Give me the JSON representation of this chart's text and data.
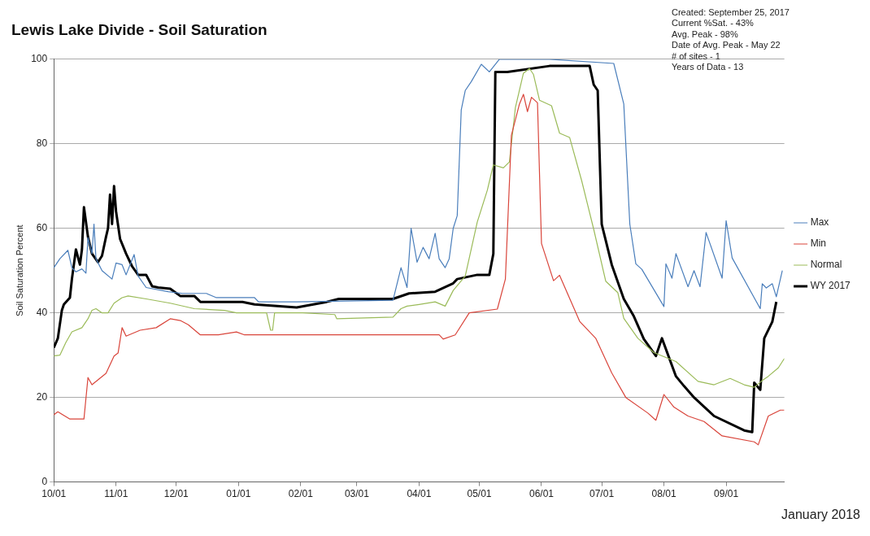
{
  "chart_data": {
    "type": "line",
    "title": "Lewis Lake Divide - Soil Saturation",
    "ylabel": "Soil Saturation Percent",
    "annotations": [
      "Created: September 25, 2017",
      "Current %Sat. - 43%",
      "Avg. Peak - 98%",
      "Date of Avg. Peak - May 22",
      "# of sites - 1",
      "Years of Data - 13",
      "January 2018"
    ],
    "xlim": [
      "2016-10-01",
      "2017-09-30"
    ],
    "xticks": [
      {
        "value": "2016-10-01",
        "label": "10/01"
      },
      {
        "value": "2016-11-01",
        "label": "11/01"
      },
      {
        "value": "2016-12-01",
        "label": "12/01"
      },
      {
        "value": "2017-01-01",
        "label": "01/01"
      },
      {
        "value": "2017-02-01",
        "label": "02/01"
      },
      {
        "value": "2017-03-01",
        "label": "03/01"
      },
      {
        "value": "2017-04-01",
        "label": "04/01"
      },
      {
        "value": "2017-05-01",
        "label": "05/01"
      },
      {
        "value": "2017-06-01",
        "label": "06/01"
      },
      {
        "value": "2017-07-01",
        "label": "07/01"
      },
      {
        "value": "2017-08-01",
        "label": "08/01"
      },
      {
        "value": "2017-09-01",
        "label": "09/01"
      }
    ],
    "ylim": [
      0,
      100
    ],
    "yticks": [
      0,
      20,
      40,
      60,
      80,
      100
    ],
    "grid": "y",
    "legend": "right",
    "marker": "none",
    "line_style": "solid",
    "series": [
      {
        "name": "Max",
        "color": "#4a7ebb",
        "x": [
          "2016-10-01",
          "2016-10-04",
          "2016-10-08",
          "2016-10-10",
          "2016-10-12",
          "2016-10-15",
          "2016-10-17",
          "2016-10-18",
          "2016-10-20",
          "2016-10-21",
          "2016-10-22",
          "2016-10-25",
          "2016-10-30",
          "2016-11-01",
          "2016-11-04",
          "2016-11-06",
          "2016-11-10",
          "2016-11-12",
          "2016-11-16",
          "2016-11-27",
          "2016-12-04",
          "2016-12-16",
          "2016-12-21",
          "2017-01-09",
          "2017-01-11",
          "2017-01-30",
          "2017-03-19",
          "2017-03-23",
          "2017-03-26",
          "2017-03-28",
          "2017-03-31",
          "2017-04-03",
          "2017-04-06",
          "2017-04-09",
          "2017-04-11",
          "2017-04-14",
          "2017-04-16",
          "2017-04-18",
          "2017-04-20",
          "2017-04-22",
          "2017-04-24",
          "2017-04-27",
          "2017-05-02",
          "2017-05-06",
          "2017-05-11",
          "2017-06-05",
          "2017-07-07",
          "2017-07-12",
          "2017-07-15",
          "2017-07-18",
          "2017-07-21",
          "2017-08-01",
          "2017-08-02",
          "2017-08-05",
          "2017-08-07",
          "2017-08-13",
          "2017-08-16",
          "2017-08-19",
          "2017-08-22",
          "2017-08-30",
          "2017-09-01",
          "2017-09-04",
          "2017-09-18",
          "2017-09-19",
          "2017-09-21",
          "2017-09-24",
          "2017-09-26",
          "2017-09-29"
        ],
        "values": [
          50.7,
          52.8,
          54.8,
          50.7,
          49.7,
          50.4,
          49.4,
          57.8,
          54,
          61,
          52.8,
          50,
          48,
          51.8,
          51.4,
          49,
          53.8,
          48.7,
          46,
          45,
          44.6,
          44.6,
          43.6,
          43.6,
          42.6,
          42.6,
          43,
          50.7,
          46,
          60,
          52,
          55.5,
          52.8,
          58.8,
          52.8,
          50.7,
          52.8,
          60,
          63,
          88,
          92.6,
          94.7,
          98.8,
          97,
          100,
          100,
          99,
          89.4,
          61,
          51.6,
          50.3,
          41.5,
          51.6,
          48.2,
          54,
          46.2,
          50,
          46.2,
          59,
          48.2,
          61.8,
          53,
          41,
          46.9,
          45.9,
          46.9,
          43.8,
          50
        ]
      },
      {
        "name": "Min",
        "color": "#d9453b",
        "x": [
          "2016-10-01",
          "2016-10-03",
          "2016-10-09",
          "2016-10-16",
          "2016-10-18",
          "2016-10-20",
          "2016-10-27",
          "2016-10-31",
          "2016-11-02",
          "2016-11-04",
          "2016-11-06",
          "2016-11-13",
          "2016-11-21",
          "2016-11-28",
          "2016-12-03",
          "2016-12-07",
          "2016-12-13",
          "2016-12-22",
          "2016-12-31",
          "2017-01-04",
          "2017-02-02",
          "2017-04-11",
          "2017-04-13",
          "2017-04-19",
          "2017-04-26",
          "2017-05-10",
          "2017-05-14",
          "2017-05-17",
          "2017-05-21",
          "2017-05-23",
          "2017-05-25",
          "2017-05-27",
          "2017-05-30",
          "2017-06-01",
          "2017-06-07",
          "2017-06-10",
          "2017-06-20",
          "2017-06-28",
          "2017-07-06",
          "2017-07-13",
          "2017-07-24",
          "2017-07-28",
          "2017-08-01",
          "2017-08-06",
          "2017-08-13",
          "2017-08-21",
          "2017-08-30",
          "2017-09-15",
          "2017-09-17",
          "2017-09-22",
          "2017-09-28",
          "2017-09-30"
        ],
        "values": [
          15.9,
          16.6,
          14.9,
          14.9,
          24.7,
          23,
          25.7,
          29.8,
          30.5,
          36.5,
          34.5,
          35.9,
          36.5,
          38.6,
          38.2,
          37.2,
          34.8,
          34.8,
          35.5,
          34.8,
          34.8,
          34.8,
          33.8,
          34.8,
          40,
          40.9,
          48,
          82,
          89.4,
          91.7,
          87.6,
          91,
          89.7,
          56.4,
          47.6,
          48.9,
          38,
          34,
          25.8,
          20,
          16.3,
          14.6,
          20.7,
          17.7,
          15.6,
          14.3,
          10.9,
          9.5,
          8.8,
          15.6,
          17,
          17
        ]
      },
      {
        "name": "Normal",
        "color": "#9bbb59",
        "x": [
          "2016-10-01",
          "2016-10-04",
          "2016-10-07",
          "2016-10-10",
          "2016-10-15",
          "2016-10-18",
          "2016-10-20",
          "2016-10-22",
          "2016-10-25",
          "2016-10-28",
          "2016-10-31",
          "2016-11-04",
          "2016-11-07",
          "2016-11-16",
          "2016-11-28",
          "2016-12-10",
          "2016-12-25",
          "2016-12-31",
          "2017-01-15",
          "2017-01-17",
          "2017-01-18",
          "2017-01-19",
          "2017-02-02",
          "2017-02-18",
          "2017-02-19",
          "2017-03-19",
          "2017-03-23",
          "2017-03-26",
          "2017-04-01",
          "2017-04-09",
          "2017-04-14",
          "2017-04-18",
          "2017-04-24",
          "2017-04-30",
          "2017-05-05",
          "2017-05-08",
          "2017-05-13",
          "2017-05-16",
          "2017-05-19",
          "2017-05-23",
          "2017-05-26",
          "2017-05-28",
          "2017-05-31",
          "2017-06-06",
          "2017-06-10",
          "2017-06-15",
          "2017-06-21",
          "2017-06-27",
          "2017-07-03",
          "2017-07-09",
          "2017-07-12",
          "2017-07-19",
          "2017-07-27",
          "2017-08-07",
          "2017-08-18",
          "2017-08-26",
          "2017-09-03",
          "2017-09-10",
          "2017-09-15",
          "2017-09-19",
          "2017-09-22",
          "2017-09-27",
          "2017-09-30"
        ],
        "values": [
          29.8,
          30,
          33,
          35.5,
          36.5,
          38.6,
          40.6,
          41,
          40,
          40,
          42.3,
          43.6,
          44,
          43.3,
          42.3,
          41,
          40.6,
          40,
          40,
          35.9,
          35.9,
          40,
          40,
          39.6,
          38.6,
          39,
          41,
          41.6,
          42,
          42.6,
          41.6,
          45.3,
          48.7,
          61.5,
          69,
          75,
          74.3,
          75.7,
          88.6,
          96.7,
          97.8,
          96.4,
          90.3,
          89,
          82.5,
          81.5,
          71.3,
          59.8,
          47.5,
          44.8,
          38.7,
          34,
          30.6,
          28.5,
          23.8,
          23,
          24.5,
          23,
          22.4,
          24,
          25,
          27,
          29.2
        ]
      },
      {
        "name": "WY 2017",
        "color": "#000000",
        "x": [
          "2016-10-01",
          "2016-10-03",
          "2016-10-05",
          "2016-10-06",
          "2016-10-09",
          "2016-10-10",
          "2016-10-12",
          "2016-10-14",
          "2016-10-15",
          "2016-10-16",
          "2016-10-18",
          "2016-10-20",
          "2016-10-23",
          "2016-10-25",
          "2016-10-27",
          "2016-10-28",
          "2016-10-29",
          "2016-10-30",
          "2016-10-31",
          "2016-11-01",
          "2016-11-03",
          "2016-11-06",
          "2016-11-09",
          "2016-11-12",
          "2016-11-16",
          "2016-11-19",
          "2016-11-22",
          "2016-11-28",
          "2016-12-03",
          "2016-12-10",
          "2016-12-13",
          "2017-01-03",
          "2017-01-09",
          "2017-01-30",
          "2017-02-14",
          "2017-02-20",
          "2017-03-19",
          "2017-03-27",
          "2017-04-09",
          "2017-04-18",
          "2017-04-20",
          "2017-04-30",
          "2017-05-06",
          "2017-05-08",
          "2017-05-09",
          "2017-05-15",
          "2017-06-05",
          "2017-06-25",
          "2017-06-27",
          "2017-06-29",
          "2017-07-01",
          "2017-07-06",
          "2017-07-12",
          "2017-07-17",
          "2017-07-22",
          "2017-07-28",
          "2017-07-31",
          "2017-08-07",
          "2017-08-11",
          "2017-08-16",
          "2017-08-26",
          "2017-09-10",
          "2017-09-14",
          "2017-09-15",
          "2017-09-18",
          "2017-09-20",
          "2017-09-24",
          "2017-09-26"
        ],
        "values": [
          31.8,
          34,
          40.6,
          42,
          43.6,
          48,
          55,
          51.4,
          55,
          65,
          58,
          54,
          52,
          53.5,
          58,
          60,
          68,
          61,
          70,
          64,
          57.5,
          54,
          51,
          49,
          49,
          46.3,
          46,
          45.7,
          44,
          44,
          42.6,
          42.6,
          42,
          41.3,
          42.6,
          43.3,
          43.3,
          44.6,
          45,
          47,
          48,
          49,
          49,
          54,
          97,
          97,
          98.4,
          98.4,
          94,
          92.6,
          61,
          51.4,
          43.3,
          39.2,
          33.8,
          29.8,
          34,
          25,
          22.7,
          20,
          15.6,
          12.2,
          11.8,
          23.5,
          21.8,
          34,
          37.9,
          42.6
        ]
      }
    ]
  }
}
